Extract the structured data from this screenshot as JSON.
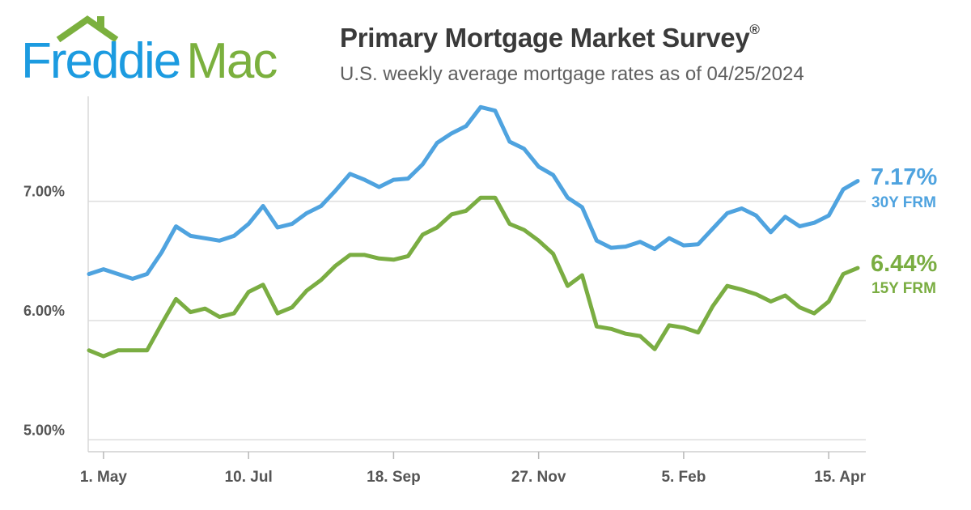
{
  "logo": {
    "text_part1": "Freddie",
    "text_part2": "Mac",
    "colors": {
      "blue": "#1c9be0",
      "green": "#7bb03e"
    }
  },
  "title": "Primary Mortgage Market Survey",
  "title_mark": "®",
  "subtitle": "U.S. weekly average mortgage rates as of 04/25/2024",
  "chart_data": {
    "type": "line",
    "title": "Primary Mortgage Market Survey®",
    "subtitle": "U.S. weekly average mortgage rates as of 04/25/2024",
    "xlabel": "",
    "ylabel": "",
    "ylim": [
      4.9,
      7.88
    ],
    "grid": true,
    "y_ticks": [
      {
        "value": 5.0,
        "label": "5.00%"
      },
      {
        "value": 6.0,
        "label": "6.00%"
      },
      {
        "value": 7.0,
        "label": "7.00%"
      }
    ],
    "x_ticks": [
      {
        "index": 1,
        "label": "1. May"
      },
      {
        "index": 11,
        "label": "10. Jul"
      },
      {
        "index": 21,
        "label": "18. Sep"
      },
      {
        "index": 31,
        "label": "27. Nov"
      },
      {
        "index": 41,
        "label": "5. Feb"
      },
      {
        "index": 51,
        "label": "15. Apr"
      }
    ],
    "series": [
      {
        "name": "30Y FRM",
        "end_label": "7.17%",
        "color": "#4fa3df",
        "values": [
          6.39,
          6.43,
          6.39,
          6.35,
          6.39,
          6.57,
          6.79,
          6.71,
          6.69,
          6.67,
          6.71,
          6.81,
          6.96,
          6.78,
          6.81,
          6.9,
          6.96,
          7.09,
          7.23,
          7.18,
          7.12,
          7.18,
          7.19,
          7.31,
          7.49,
          7.57,
          7.63,
          7.79,
          7.76,
          7.5,
          7.44,
          7.29,
          7.22,
          7.03,
          6.95,
          6.67,
          6.61,
          6.62,
          6.66,
          6.6,
          6.69,
          6.63,
          6.64,
          6.77,
          6.9,
          6.94,
          6.88,
          6.74,
          6.87,
          6.79,
          6.82,
          6.88,
          7.1,
          7.17
        ]
      },
      {
        "name": "15Y FRM",
        "end_label": "6.44%",
        "color": "#7aad42",
        "values": [
          5.75,
          5.7,
          5.75,
          5.75,
          5.75,
          5.97,
          6.18,
          6.07,
          6.1,
          6.03,
          6.06,
          6.24,
          6.3,
          6.06,
          6.11,
          6.25,
          6.34,
          6.46,
          6.55,
          6.55,
          6.52,
          6.51,
          6.54,
          6.72,
          6.78,
          6.89,
          6.92,
          7.03,
          7.03,
          6.81,
          6.76,
          6.67,
          6.56,
          6.29,
          6.38,
          5.95,
          5.93,
          5.89,
          5.87,
          5.76,
          5.96,
          5.94,
          5.9,
          6.12,
          6.29,
          6.26,
          6.22,
          6.16,
          6.21,
          6.11,
          6.06,
          6.16,
          6.39,
          6.44
        ]
      }
    ]
  }
}
